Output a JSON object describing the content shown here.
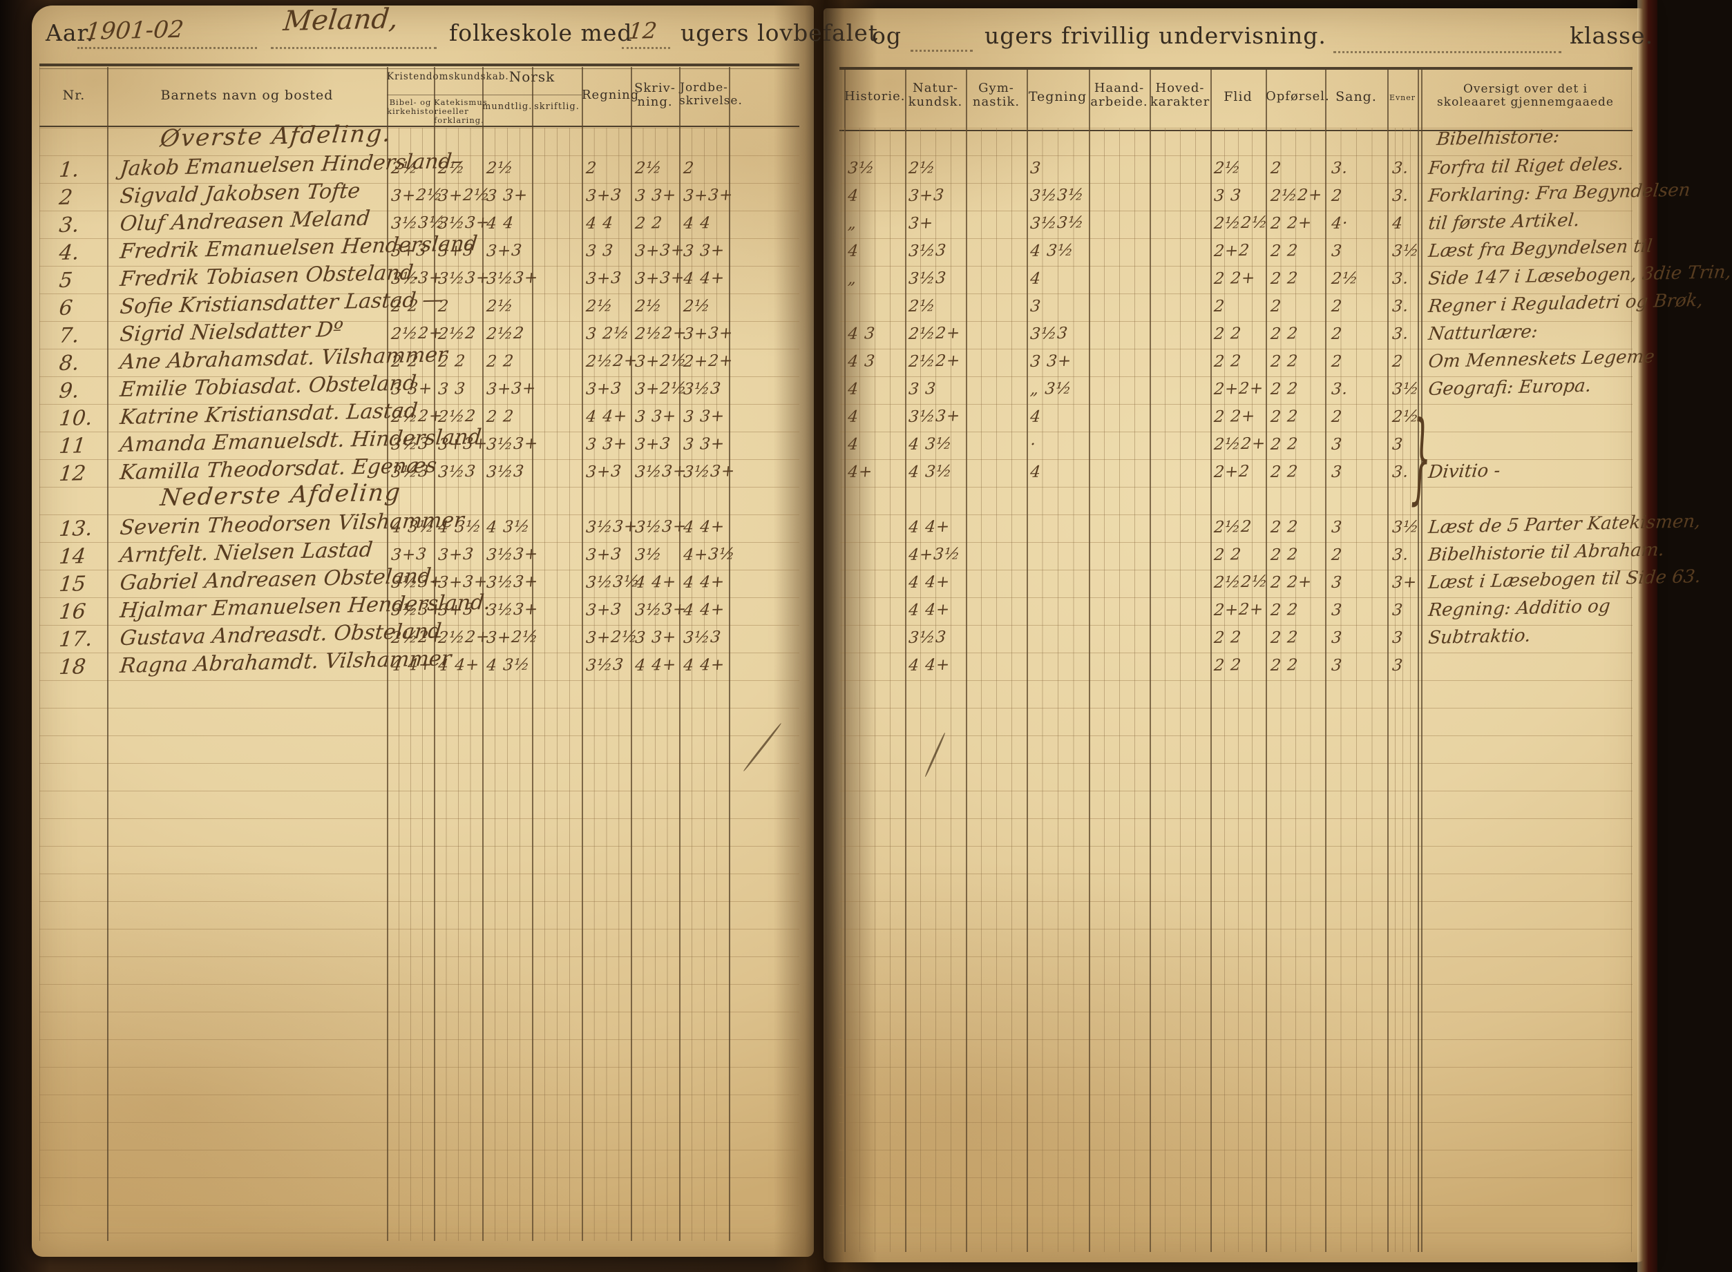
{
  "book": {
    "aar_label": "Aar.",
    "aar_value": "1901-02",
    "school_name": "Meland,",
    "line_folkeskole": "folkeskole med",
    "weeks_lovbefalet": "12",
    "line_lovbefalet": "ugers lovbefalet",
    "line_og": "og",
    "line_frivillig": "ugers frivillig undervisning.",
    "klasse_label": "klasse."
  },
  "left_header": {
    "nr": "Nr.",
    "name": "Barnets navn og bosted",
    "krist_group": "Kristendomskundskab.",
    "bibel": "Bibel- og\nkirkehistorie",
    "katekismus": "Katekismus eller\nforklaring.",
    "norsk_group": "Norsk",
    "mundtlig": "mundtlig.",
    "skriftlig": "skriftlig.",
    "regning": "Regning",
    "skrivning": "Skriv-\nning.",
    "jordbeskrivelse": "Jordbe-\nskrivelse."
  },
  "right_header": {
    "historie": "Historie.",
    "naturkundskab": "Natur-\nkundsk.",
    "gymnastik": "Gym-\nnastik.",
    "tegning": "Tegning",
    "haandarbeide": "Haand-\narbeide.",
    "hovedkarakter": "Hoved-\nkarakter",
    "flid": "Flid",
    "opforsel": "Opførsel.",
    "sang": "Sang.",
    "evner": "Evner",
    "oversigt": "Oversigt over det i\nskoleaaret gjennemgaaede"
  },
  "overview_brace": "}",
  "sections": [
    {
      "title": "Øverste Afdeling.",
      "overview_heading": "Bibelhistorie:",
      "rows": [
        {
          "nr": "1.",
          "name": "Jakob Emanuelsen Hindersland–",
          "grades": [
            "2½",
            "2½",
            "2½",
            "",
            "2",
            "2½",
            "2",
            "3½",
            "2½",
            "",
            "3",
            "",
            "",
            "2½",
            "2",
            "3.",
            "3."
          ],
          "oversigt": "Forfra til Riget deles."
        },
        {
          "nr": "2",
          "name": "Sigvald Jakobsen Tofte",
          "grades": [
            "3+2½",
            "3+2½",
            "3 3+",
            "",
            "3+3",
            "3 3+",
            "3+3+",
            "4",
            "3+3",
            "",
            "3½3½",
            "",
            "",
            "3 3",
            "2½2+",
            "2",
            "3."
          ],
          "oversigt": "Forklaring: Fra Begyndelsen"
        },
        {
          "nr": "3.",
          "name": "Oluf Andreasen Meland",
          "grades": [
            "3½3½",
            "3½3+",
            "4 4",
            "",
            "4 4",
            "2 2",
            "4 4",
            "„",
            "3+",
            "",
            "3½3½",
            "",
            "",
            "2½2½",
            "2 2+",
            "4·",
            "4"
          ],
          "oversigt": "til første Artikel."
        },
        {
          "nr": "4.",
          "name": "Fredrik Emanuelsen Hendersland",
          "grades": [
            "3+3",
            "3+3",
            "3+3",
            "",
            "3 3",
            "3+3+",
            "3 3+",
            "4",
            "3½3",
            "",
            "4 3½",
            "",
            "",
            "2+2",
            "2 2",
            "3",
            "3½"
          ],
          "oversigt": "Læst fra Begyndelsen til"
        },
        {
          "nr": "5",
          "name": "Fredrik Tobiasen Obsteland.",
          "grades": [
            "3½3+",
            "3½3+",
            "3½3+",
            "",
            "3+3",
            "3+3+",
            "4 4+",
            "„",
            "3½3",
            "",
            "4",
            "",
            "",
            "2 2+",
            "2 2",
            "2½",
            "3."
          ],
          "oversigt": "Side 147 i Læsebogen, 3die Trin,"
        },
        {
          "nr": "6",
          "name": "Sofie Kristiansdatter Lastad —",
          "grades": [
            "2 2",
            "2",
            "2½",
            "",
            "2½",
            "2½",
            "2½",
            "",
            "2½",
            "",
            "3",
            "",
            "",
            "2",
            "2",
            "2",
            "3."
          ],
          "oversigt": "Regner i Reguladetri og Brøk,"
        },
        {
          "nr": "7.",
          "name": "Sigrid Nielsdatter  Dº",
          "grades": [
            "2½2+",
            "2½2",
            "2½2",
            "",
            "3 2½",
            "2½2+",
            "3+3+",
            "4 3",
            "2½2+",
            "",
            "3½3",
            "",
            "",
            "2 2",
            "2 2",
            "2",
            "3."
          ],
          "oversigt": "Natturlære:"
        },
        {
          "nr": "8.",
          "name": "Ane Abrahamsdat. Vilshammer",
          "grades": [
            "2 2",
            "2 2",
            "2 2",
            "",
            "2½2+",
            "3+2½",
            "2+2+",
            "4 3",
            "2½2+",
            "",
            "3 3+",
            "",
            "",
            "2 2",
            "2 2",
            "2",
            "2"
          ],
          "oversigt": "Om Menneskets Legeme"
        },
        {
          "nr": "9.",
          "name": "Emilie Tobiasdat. Obsteland",
          "grades": [
            "3 3+",
            "3 3",
            "3+3+",
            "",
            "3+3",
            "3+2½",
            "3½3",
            "4",
            "3 3",
            "",
            "„ 3½",
            "",
            "",
            "2+2+",
            "2 2",
            "3.",
            "3½"
          ],
          "oversigt": "Geografi: Europa."
        },
        {
          "nr": "10.",
          "name": "Katrine Kristiansdat. Lastad",
          "grades": [
            "2½2+",
            "2½2",
            "2 2",
            "",
            "4 4+",
            "3 3+",
            "3 3+",
            "4",
            "3½3+",
            "",
            "4",
            "",
            "",
            "2 2+",
            "2 2",
            "2",
            "2½"
          ],
          "oversigt": ""
        },
        {
          "nr": "11",
          "name": "Amanda Emanuelsdt. Hindersland",
          "grades": [
            "3½3",
            "3+3+",
            "3½3+",
            "",
            "3 3+",
            "3+3",
            "3 3+",
            "4",
            "4 3½",
            "",
            "·",
            "",
            "",
            "2½2+",
            "2 2",
            "3",
            "3"
          ],
          "oversigt": ""
        },
        {
          "nr": "12",
          "name": "Kamilla Theodorsdat. Egenæs",
          "grades": [
            "3½3",
            "3½3",
            "3½3",
            "",
            "3+3",
            "3½3+",
            "3½3+",
            "4+",
            "4 3½",
            "",
            "4",
            "",
            "",
            "2+2",
            "2 2",
            "3",
            "3."
          ],
          "oversigt": "Divitio -"
        }
      ]
    },
    {
      "title": "Nederste Afdeling",
      "overview_heading": "",
      "rows": [
        {
          "nr": "13.",
          "name": "Severin Theodorsen Vilshammer",
          "grades": [
            "4 3½",
            "4 3½",
            "4 3½",
            "",
            "3½3+",
            "3½3+",
            "4 4+",
            "",
            "4 4+",
            "",
            "",
            "",
            "",
            "2½2",
            "2 2",
            "3",
            "3½"
          ],
          "oversigt": "Læst de 5 Parter Katekismen,"
        },
        {
          "nr": "14",
          "name": "Arntfelt. Nielsen Lastad",
          "grades": [
            "3+3",
            "3+3",
            "3½3+",
            "",
            "3+3",
            "3½",
            "4+3½",
            "",
            "4+3½",
            "",
            "",
            "",
            "",
            "2 2",
            "2 2",
            "2",
            "3."
          ],
          "oversigt": "Bibelhistorie til Abraham."
        },
        {
          "nr": "15",
          "name": "Gabriel Andreasen Obsteland.",
          "grades": [
            "3½3+",
            "3+3+",
            "3½3+",
            "",
            "3½3½",
            "4 4+",
            "4 4+",
            "",
            "4 4+",
            "",
            "",
            "",
            "",
            "2½2½",
            "2 2+",
            "3",
            "3+"
          ],
          "oversigt": "Læst i Læsebogen til Side 63."
        },
        {
          "nr": "16",
          "name": "Hjalmar Emanuelsen Hendersland.",
          "grades": [
            "3½3+",
            "3+3",
            "3½3+",
            "",
            "3+3",
            "3½3+",
            "4 4+",
            "",
            "4 4+",
            "",
            "",
            "",
            "",
            "2+2+",
            "2 2",
            "3",
            "3"
          ],
          "oversigt": "Regning: Additio og"
        },
        {
          "nr": "17.",
          "name": "Gustava Andreasdt. Obsteland",
          "grades": [
            "2½2+",
            "2½2+",
            "3+2½",
            "",
            "3+2½",
            "3 3+",
            "3½3",
            "",
            "3½3",
            "",
            "",
            "",
            "",
            "2 2",
            "2 2",
            "3",
            "3"
          ],
          "oversigt": "Subtraktio."
        },
        {
          "nr": "18",
          "name": "Ragna Abrahamdt. Vilshammer",
          "grades": [
            "4 4+",
            "4 4+",
            "4 3½",
            "",
            "3½3",
            "4 4+",
            "4 4+",
            "",
            "4 4+",
            "",
            "",
            "",
            "",
            "2 2",
            "2 2",
            "3",
            "3"
          ],
          "oversigt": ""
        }
      ]
    }
  ]
}
